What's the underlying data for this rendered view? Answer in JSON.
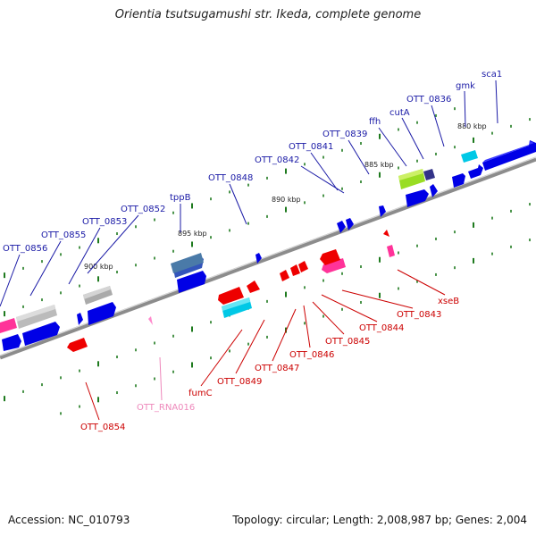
{
  "title": "Orientia tsutsugamushi str. Ikeda, complete genome",
  "footer": {
    "accession": "Accession: NC_010793",
    "summary": "Topology: circular; Length: 2,008,987 bp; Genes: 2,004"
  },
  "colors": {
    "forward_label": "#1a1aa6",
    "reverse_label": "#cc0000",
    "rna_label": "#ee88bb",
    "backbone": "#8c8c8c",
    "tick": "#1e7a1e",
    "cds_forward": "#0000e6",
    "cds_reverse": "#ee0000",
    "rna": "#ff3399"
  },
  "scale_labels": [
    "880 kbp",
    "885 kbp",
    "890 kbp",
    "895 kbp",
    "900 kbp"
  ],
  "forward_labels": [
    "sca1",
    "gmk",
    "OTT_0836",
    "cutA",
    "ffh",
    "OTT_0839",
    "OTT_0841",
    "OTT_0842",
    "OTT_0848",
    "tppB",
    "OTT_0852",
    "OTT_0853",
    "OTT_0855",
    "OTT_0856"
  ],
  "reverse_labels": [
    "xseB",
    "OTT_0843",
    "OTT_0844",
    "OTT_0845",
    "OTT_0846",
    "OTT_0847",
    "OTT_0849",
    "fumC",
    "OTT_RNA016",
    "OTT_0854"
  ]
}
